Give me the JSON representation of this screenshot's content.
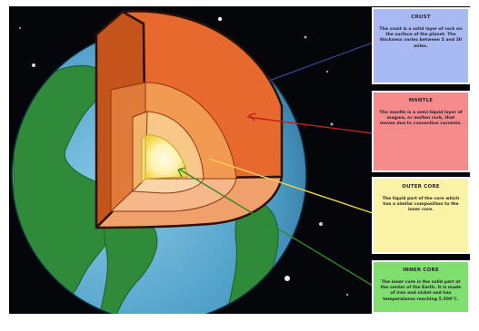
{
  "layers": [
    {
      "id": "crust",
      "title": "CRUST",
      "text": "The crust is a solid layer of rock on the surface of the planet. The thickness varies between 5 and 30 miles.",
      "box_color": "#a9b9f2",
      "line_color": "#3a3f8a"
    },
    {
      "id": "mantle",
      "title": "MANTLE",
      "text": "The mantle is a semi-liquid layer of magma, or molten rock, that moves due to convection currents.",
      "box_color": "#f58b8b",
      "line_color": "#c02020"
    },
    {
      "id": "outer_core",
      "title": "OUTER CORE",
      "text": "The liquid part of the core which has a similar composition to the inner core.",
      "box_color": "#fbf3a4",
      "line_color": "#f2d34a"
    },
    {
      "id": "inner_core",
      "title": "INNER CORE",
      "text": "The inner core is the solid part at the center of the Earth. It is made of iron and nickel and has temperatures reaching 5,500°C.",
      "box_color": "#7fe06e",
      "line_color": "#2f8a2a"
    }
  ],
  "colors": {
    "space": "#05060a",
    "ocean": "#5aa9cf",
    "land": "#2f8a3a",
    "crust": "#c5531c",
    "mantle": "#f0883a",
    "outer_core": "#f7b46a",
    "inner_core": "#f6f07a",
    "outline": "#2a1208"
  },
  "icons": [
    "earth-illustration",
    "star-icon"
  ]
}
